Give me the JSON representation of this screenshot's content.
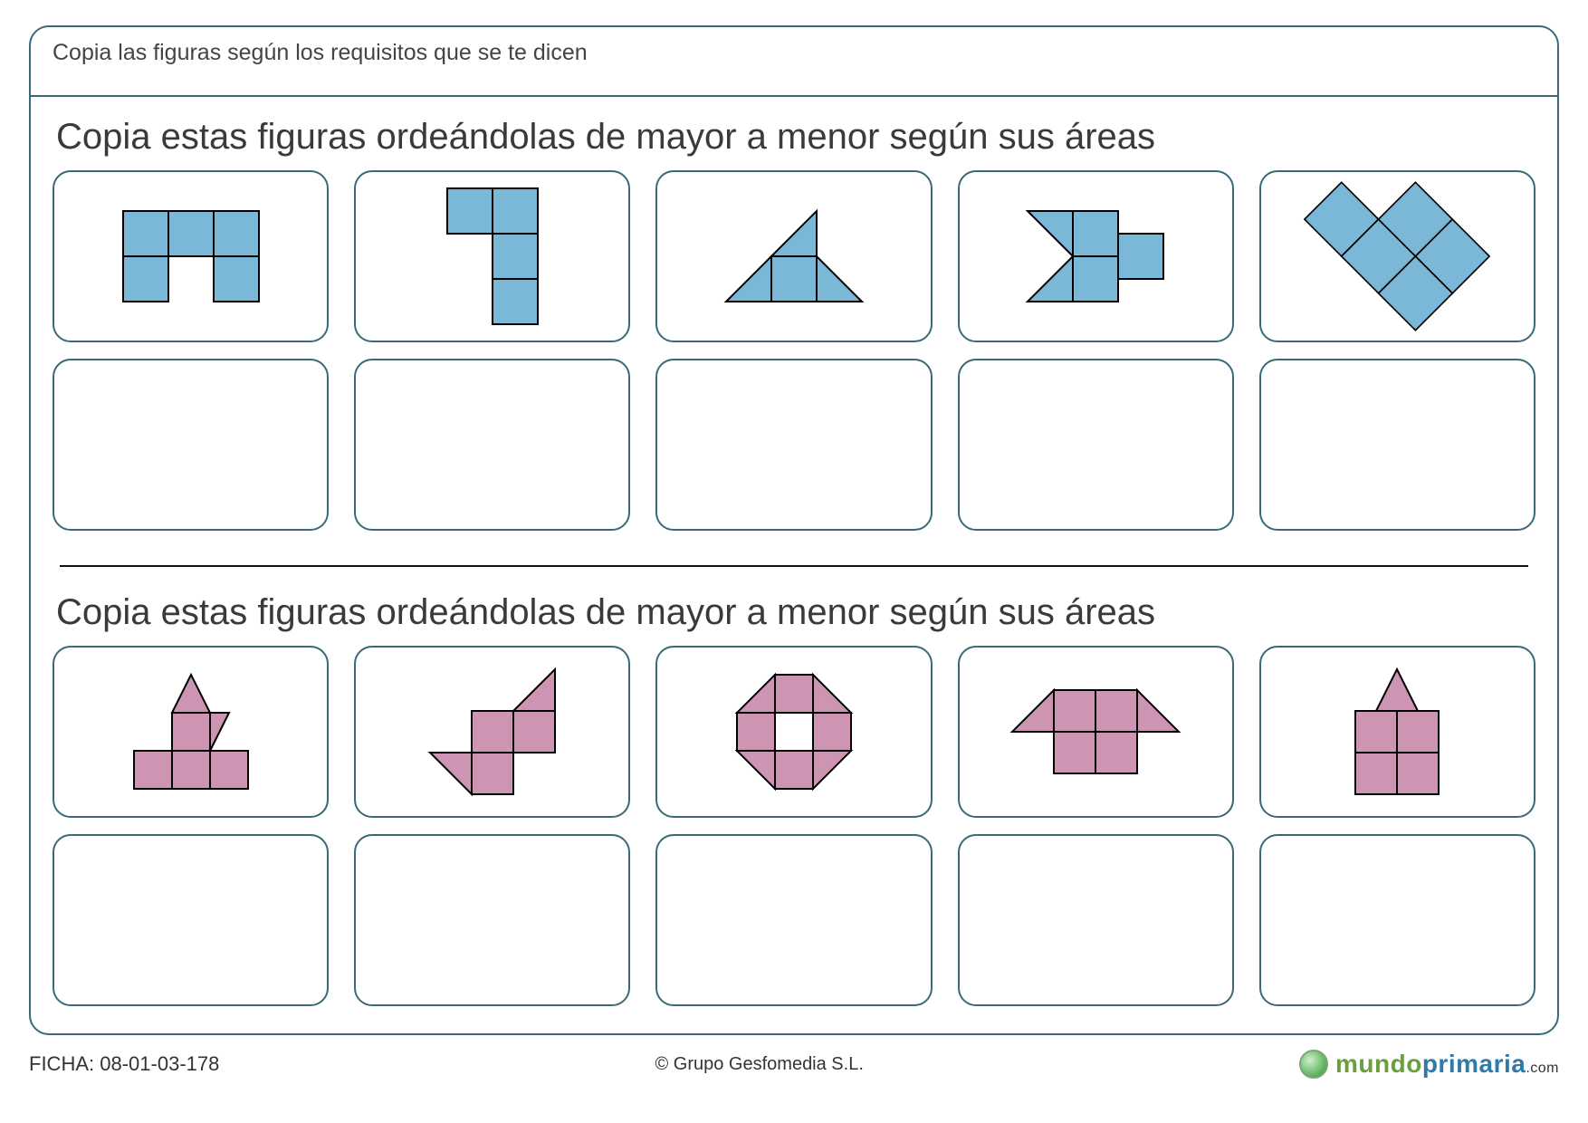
{
  "instruction": "Copia las figuras según los requisitos que se te dicen",
  "section1": {
    "prompt": "Copia estas figuras ordeándolas de mayor a menor según sus áreas",
    "fill_color": "#7bb7d6",
    "stroke_color": "#000000",
    "stroke_width": 2,
    "shapes": [
      {
        "type": "squares",
        "unit": 50,
        "cells": [
          [
            0,
            0
          ],
          [
            1,
            0
          ],
          [
            2,
            0
          ],
          [
            0,
            1
          ],
          [
            2,
            1
          ]
        ]
      },
      {
        "type": "squares",
        "unit": 50,
        "cells": [
          [
            0,
            0
          ],
          [
            1,
            0
          ],
          [
            1,
            1
          ],
          [
            1,
            2
          ]
        ]
      },
      {
        "type": "polys",
        "unit": 50,
        "polys": [
          [
            [
              0,
              2
            ],
            [
              1,
              2
            ],
            [
              1,
              1
            ]
          ],
          [
            [
              1,
              1
            ],
            [
              1,
              2
            ],
            [
              2,
              2
            ],
            [
              2,
              1
            ]
          ],
          [
            [
              2,
              1
            ],
            [
              2,
              2
            ],
            [
              3,
              2
            ]
          ],
          [
            [
              1,
              1
            ],
            [
              2,
              1
            ],
            [
              2,
              0
            ]
          ]
        ]
      },
      {
        "type": "polys",
        "unit": 50,
        "polys": [
          [
            [
              0,
              0
            ],
            [
              1,
              1
            ],
            [
              1,
              0
            ]
          ],
          [
            [
              0,
              2
            ],
            [
              1,
              1
            ],
            [
              1,
              2
            ]
          ],
          [
            [
              1,
              0
            ],
            [
              1,
              1
            ],
            [
              2,
              1
            ],
            [
              2,
              0
            ]
          ],
          [
            [
              1,
              1
            ],
            [
              1,
              2
            ],
            [
              2,
              2
            ],
            [
              2,
              1
            ]
          ],
          [
            [
              2,
              0.5
            ],
            [
              2,
              1.5
            ],
            [
              3,
              1.5
            ],
            [
              3,
              0.5
            ]
          ]
        ]
      },
      {
        "type": "polys",
        "unit": 50,
        "polys": [
          [
            [
              1,
              0
            ],
            [
              2,
              1
            ],
            [
              1,
              2
            ],
            [
              0,
              1
            ]
          ],
          [
            [
              2,
              1
            ],
            [
              3,
              2
            ],
            [
              2,
              3
            ],
            [
              1,
              2
            ]
          ],
          [
            [
              2,
              1
            ],
            [
              3,
              0
            ],
            [
              4,
              1
            ],
            [
              3,
              2
            ]
          ],
          [
            [
              3,
              2
            ],
            [
              4,
              1
            ],
            [
              5,
              2
            ],
            [
              4,
              3
            ]
          ],
          [
            [
              3,
              2
            ],
            [
              4,
              3
            ],
            [
              3,
              4
            ],
            [
              2,
              3
            ]
          ]
        ]
      }
    ]
  },
  "section2": {
    "prompt": "Copia estas figuras ordeándolas de mayor a menor según sus áreas",
    "fill_color": "#cd95b3",
    "stroke_color": "#000000",
    "stroke_width": 2,
    "shapes": [
      {
        "type": "polys",
        "unit": 42,
        "polys": [
          [
            [
              1,
              1
            ],
            [
              2,
              1
            ],
            [
              1.5,
              0
            ]
          ],
          [
            [
              1,
              1
            ],
            [
              2,
              1
            ],
            [
              2,
              2
            ],
            [
              1,
              2
            ]
          ],
          [
            [
              2,
              1
            ],
            [
              2.5,
              1
            ],
            [
              2,
              2
            ]
          ],
          [
            [
              0,
              2
            ],
            [
              1,
              2
            ],
            [
              1,
              3
            ],
            [
              0,
              3
            ]
          ],
          [
            [
              1,
              2
            ],
            [
              2,
              2
            ],
            [
              2,
              3
            ],
            [
              1,
              3
            ]
          ],
          [
            [
              2,
              2
            ],
            [
              3,
              2
            ],
            [
              3,
              3
            ],
            [
              2,
              3
            ]
          ]
        ]
      },
      {
        "type": "polys",
        "unit": 46,
        "polys": [
          [
            [
              1,
              2
            ],
            [
              2,
              2
            ],
            [
              2,
              1
            ],
            [
              1,
              1
            ]
          ],
          [
            [
              2,
              1
            ],
            [
              3,
              1
            ],
            [
              3,
              2
            ],
            [
              2,
              2
            ]
          ],
          [
            [
              3,
              0
            ],
            [
              3,
              1
            ],
            [
              2,
              1
            ]
          ],
          [
            [
              1,
              2
            ],
            [
              2,
              2
            ],
            [
              2,
              3
            ],
            [
              1,
              3
            ]
          ],
          [
            [
              0,
              2
            ],
            [
              1,
              2
            ],
            [
              1,
              3
            ]
          ]
        ]
      },
      {
        "type": "polys",
        "unit": 42,
        "polys": [
          [
            [
              1,
              0
            ],
            [
              2,
              0
            ],
            [
              2,
              1
            ],
            [
              1,
              1
            ]
          ],
          [
            [
              0,
              1
            ],
            [
              1,
              1
            ],
            [
              1,
              0
            ]
          ],
          [
            [
              2,
              0
            ],
            [
              3,
              1
            ],
            [
              2,
              1
            ]
          ],
          [
            [
              0,
              1
            ],
            [
              1,
              1
            ],
            [
              1,
              2
            ],
            [
              0,
              2
            ]
          ],
          [
            [
              2,
              1
            ],
            [
              3,
              1
            ],
            [
              3,
              2
            ],
            [
              2,
              2
            ]
          ],
          [
            [
              0,
              2
            ],
            [
              1,
              2
            ],
            [
              1,
              3
            ]
          ],
          [
            [
              1,
              2
            ],
            [
              2,
              2
            ],
            [
              2,
              3
            ],
            [
              1,
              3
            ]
          ],
          [
            [
              2,
              2
            ],
            [
              3,
              2
            ],
            [
              2,
              3
            ]
          ]
        ]
      },
      {
        "type": "polys",
        "unit": 46,
        "polys": [
          [
            [
              1,
              0
            ],
            [
              2,
              0
            ],
            [
              2,
              1
            ],
            [
              1,
              1
            ]
          ],
          [
            [
              2,
              0
            ],
            [
              3,
              0
            ],
            [
              3,
              1
            ],
            [
              2,
              1
            ]
          ],
          [
            [
              1,
              1
            ],
            [
              2,
              1
            ],
            [
              2,
              2
            ],
            [
              1,
              2
            ]
          ],
          [
            [
              2,
              1
            ],
            [
              3,
              1
            ],
            [
              3,
              2
            ],
            [
              2,
              2
            ]
          ],
          [
            [
              0,
              1
            ],
            [
              1,
              1
            ],
            [
              1,
              0
            ]
          ],
          [
            [
              3,
              0
            ],
            [
              4,
              1
            ],
            [
              3,
              1
            ]
          ]
        ]
      },
      {
        "type": "polys",
        "unit": 46,
        "polys": [
          [
            [
              0.5,
              1
            ],
            [
              1.5,
              1
            ],
            [
              1,
              0
            ]
          ],
          [
            [
              1.5,
              1
            ],
            [
              2,
              1
            ],
            [
              2,
              2
            ],
            [
              1.5,
              2
            ]
          ],
          [
            [
              0,
              1
            ],
            [
              1,
              1
            ],
            [
              1,
              2
            ],
            [
              0,
              2
            ]
          ],
          [
            [
              1,
              1
            ],
            [
              2,
              1
            ],
            [
              2,
              2
            ],
            [
              1,
              2
            ]
          ],
          [
            [
              0,
              2
            ],
            [
              1,
              2
            ],
            [
              1,
              3
            ],
            [
              0,
              3
            ]
          ],
          [
            [
              1,
              2
            ],
            [
              2,
              2
            ],
            [
              2,
              3
            ],
            [
              1,
              3
            ]
          ]
        ]
      }
    ]
  },
  "footer": {
    "ficha_label": "FICHA:",
    "ficha_num": "08-01-03-178",
    "copyright": "© Grupo Gesfomedia S.L.",
    "brand1": "mundo",
    "brand2": "primaria",
    "brand_suffix": ".com"
  },
  "styling": {
    "border_color": "#3a6a78",
    "border_radius": 20,
    "page_bg": "#ffffff"
  }
}
